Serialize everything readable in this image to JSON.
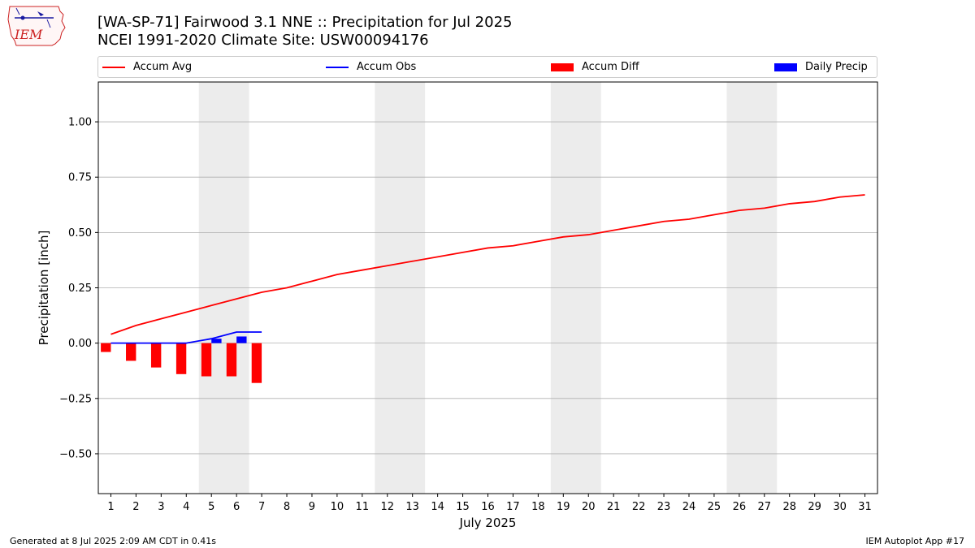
{
  "header": {
    "title_line1": "[WA-SP-71] Fairwood 3.1 NNE :: Precipitation for Jul 2025",
    "title_line2": "NCEI 1991-2020 Climate Site: USW00094176",
    "logo_text": "IEM"
  },
  "footer": {
    "left": "Generated at 8 Jul 2025 2:09 AM CDT in 0.41s",
    "right": "IEM Autoplot App #17"
  },
  "colors": {
    "accum_avg": "#ff0000",
    "accum_obs": "#0000ff",
    "accum_diff": "#ff0000",
    "daily_precip": "#0000ff",
    "weekend_shade": "#ececec",
    "grid": "#b0b0b0"
  },
  "chart_data": {
    "type": "bar",
    "title": "[WA-SP-71] Fairwood 3.1 NNE :: Precipitation for Jul 2025",
    "subtitle": "NCEI 1991-2020 Climate Site: USW00094176",
    "xlabel": "July 2025",
    "ylabel": "Precipitation [inch]",
    "x": [
      1,
      2,
      3,
      4,
      5,
      6,
      7,
      8,
      9,
      10,
      11,
      12,
      13,
      14,
      15,
      16,
      17,
      18,
      19,
      20,
      21,
      22,
      23,
      24,
      25,
      26,
      27,
      28,
      29,
      30,
      31
    ],
    "x_tick_labels": [
      "1",
      "2",
      "3",
      "4",
      "5",
      "6",
      "7",
      "8",
      "9",
      "10",
      "11",
      "12",
      "13",
      "14",
      "15",
      "16",
      "17",
      "18",
      "19",
      "20",
      "21",
      "22",
      "23",
      "24",
      "25",
      "26",
      "27",
      "28",
      "29",
      "30",
      "31"
    ],
    "xlim": [
      0.5,
      31.5
    ],
    "ylim": [
      -0.68,
      1.18
    ],
    "y_ticks": [
      -0.5,
      -0.25,
      0.0,
      0.25,
      0.5,
      0.75,
      1.0
    ],
    "y_tick_labels": [
      "−0.50",
      "−0.25",
      "0.00",
      "0.25",
      "0.50",
      "0.75",
      "1.00"
    ],
    "grid": "horizontal",
    "legend": "top, above plot",
    "weekend_spans": [
      [
        4.5,
        6.5
      ],
      [
        11.5,
        13.5
      ],
      [
        18.5,
        20.5
      ],
      [
        25.5,
        27.5
      ]
    ],
    "series": [
      {
        "name": "Accum Avg",
        "kind": "line",
        "x": [
          1,
          2,
          3,
          4,
          5,
          6,
          7,
          8,
          9,
          10,
          11,
          12,
          13,
          14,
          15,
          16,
          17,
          18,
          19,
          20,
          21,
          22,
          23,
          24,
          25,
          26,
          27,
          28,
          29,
          30,
          31
        ],
        "values": [
          0.04,
          0.08,
          0.11,
          0.14,
          0.17,
          0.2,
          0.23,
          0.25,
          0.28,
          0.31,
          0.33,
          0.35,
          0.37,
          0.39,
          0.41,
          0.43,
          0.44,
          0.46,
          0.48,
          0.49,
          0.51,
          0.53,
          0.55,
          0.56,
          0.58,
          0.6,
          0.61,
          0.63,
          0.64,
          0.66,
          0.67
        ]
      },
      {
        "name": "Accum Obs",
        "kind": "line",
        "x": [
          1,
          2,
          3,
          4,
          5,
          6,
          7
        ],
        "values": [
          0.0,
          0.0,
          0.0,
          0.0,
          0.02,
          0.05,
          0.05
        ]
      },
      {
        "name": "Accum Diff",
        "kind": "bar",
        "offset": -0.2,
        "x": [
          1,
          2,
          3,
          4,
          5,
          6,
          7
        ],
        "values": [
          -0.04,
          -0.08,
          -0.11,
          -0.14,
          -0.15,
          -0.15,
          -0.18
        ]
      },
      {
        "name": "Daily Precip",
        "kind": "bar",
        "offset": 0.2,
        "x": [
          1,
          2,
          3,
          4,
          5,
          6,
          7
        ],
        "values": [
          0.0,
          0.0,
          0.0,
          0.0,
          0.02,
          0.03,
          0.0
        ]
      }
    ]
  }
}
